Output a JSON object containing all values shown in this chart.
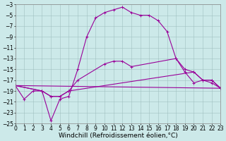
{
  "background_color": "#cce9e9",
  "grid_color": "#a0c0c0",
  "line_color": "#990099",
  "xlim": [
    0,
    23
  ],
  "ylim": [
    -25,
    -3
  ],
  "xticks": [
    0,
    1,
    2,
    3,
    4,
    5,
    6,
    7,
    8,
    9,
    10,
    11,
    12,
    13,
    14,
    15,
    16,
    17,
    18,
    19,
    20,
    21,
    22,
    23
  ],
  "yticks": [
    -3,
    -5,
    -7,
    -9,
    -11,
    -13,
    -15,
    -17,
    -19,
    -21,
    -23,
    -25
  ],
  "xlabel": "Windchill (Refroidissement éolien,°C)",
  "curves": [
    {
      "x": [
        0,
        1,
        2,
        3,
        4,
        5,
        6,
        7,
        8,
        9,
        10,
        11,
        12,
        13,
        14,
        15,
        16,
        17,
        18,
        19,
        20,
        21,
        22,
        23
      ],
      "y": [
        -18,
        -20.5,
        -19,
        -19,
        -24.5,
        -20.5,
        -20,
        -15,
        -9,
        -5.5,
        -4.5,
        -4,
        -3.5,
        -4.5,
        -5,
        -5,
        -6,
        -8,
        -13,
        -15,
        -15.5,
        -17,
        -17,
        -18.5
      ],
      "has_markers": true
    },
    {
      "x": [
        0,
        3,
        4,
        5,
        6,
        7,
        10,
        11,
        12,
        13,
        18,
        19,
        20,
        21,
        22,
        23
      ],
      "y": [
        -18,
        -19,
        -20,
        -20,
        -19,
        -17,
        -14,
        -13.5,
        -13.5,
        -14.5,
        -13,
        -15.5,
        -17.5,
        -17,
        -17.5,
        -18.5
      ],
      "has_markers": true
    },
    {
      "x": [
        0,
        3,
        4,
        5,
        6,
        20,
        21,
        22,
        23
      ],
      "y": [
        -18,
        -19,
        -20,
        -20,
        -19,
        -15.5,
        -17,
        -17,
        -18.5
      ],
      "has_markers": true
    },
    {
      "x": [
        0,
        23
      ],
      "y": [
        -18,
        -18.5
      ],
      "has_markers": false
    }
  ],
  "tick_fontsize": 5.5,
  "xlabel_fontsize": 6.5,
  "linewidth": 0.8,
  "markersize": 3.5
}
